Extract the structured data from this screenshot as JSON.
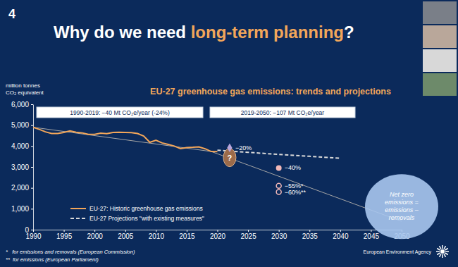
{
  "slide": {
    "number": "4",
    "title_parts": [
      "Why do we need ",
      "long-term planning",
      "?"
    ]
  },
  "chart_data": {
    "type": "line",
    "title": "EU-27 greenhouse gas emissions: trends and projections",
    "ylabel": [
      "million tonnes",
      "CO₂ equivalent"
    ],
    "xlim": [
      1990,
      2050
    ],
    "xticks": [
      1990,
      1995,
      2000,
      2005,
      2010,
      2015,
      2020,
      2025,
      2030,
      2035,
      2040,
      2045,
      2050
    ],
    "ylim": [
      0,
      6000
    ],
    "yticks": [
      0,
      {
        "value": 1000,
        "label": "1,000"
      },
      {
        "value": 2000,
        "label": "2,000"
      },
      {
        "value": 3000,
        "label": "3,000"
      },
      {
        "value": 4000,
        "label": "4,000"
      },
      {
        "value": 5000,
        "label": "5,000"
      },
      {
        "value": 6000,
        "label": "6,000"
      }
    ],
    "grid": false,
    "legend": "lower left",
    "series": [
      {
        "name": "EU-27: Historic greenhouse gas emissions",
        "color": "#f2a65a",
        "line_style": "solid",
        "x": [
          1990,
          1991,
          1992,
          1993,
          1994,
          1995,
          1996,
          1997,
          1998,
          1999,
          2000,
          2001,
          2002,
          2003,
          2004,
          2005,
          2006,
          2007,
          2008,
          2009,
          2010,
          2011,
          2012,
          2013,
          2014,
          2015,
          2016,
          2017,
          2018,
          2019,
          2020
        ],
        "values": [
          4900,
          4800,
          4680,
          4600,
          4600,
          4650,
          4730,
          4660,
          4630,
          4560,
          4560,
          4620,
          4590,
          4650,
          4660,
          4650,
          4640,
          4600,
          4480,
          4180,
          4280,
          4150,
          4080,
          4000,
          3880,
          3930,
          3940,
          3960,
          3870,
          3740,
          3730
        ]
      },
      {
        "name": "EU-27 Projections \"with existing measures\"",
        "color": "#d9d9d9",
        "line_style": "dashed",
        "x": [
          2020,
          2025,
          2030,
          2035,
          2040
        ],
        "values": [
          3800,
          3700,
          3600,
          3510,
          3420
        ]
      },
      {
        "color": "#a6a6a6",
        "line_style": "solid",
        "x": [
          1990,
          2019,
          2050
        ],
        "values": [
          4900,
          3740,
          400
        ]
      }
    ],
    "targets": [
      {
        "label": "−20%",
        "x": 2022,
        "y": 3920,
        "marker": "diamond",
        "color": "#b9a6dc"
      },
      {
        "label": "−40%",
        "x": 2030,
        "y": 2950,
        "marker": "circle",
        "color": "#f2b8b8"
      },
      {
        "label": "−55%*",
        "x": 2030,
        "y": 2100,
        "marker": "open_circle",
        "color": "#f2b8b8"
      },
      {
        "label": "−60%**",
        "x": 2030,
        "y": 1800,
        "marker": "open_circle",
        "color": "#f2b8b8"
      }
    ],
    "period_labels": [
      "1990-2019: −40 Mt CO₂e/year (-24%)",
      "2019-2050: −107 Mt CO₂e/year"
    ],
    "annotations": [
      {
        "text": "?",
        "x": 2022,
        "y": 3450
      },
      {
        "text": [
          "Net zero",
          "emissions =",
          "emissions –",
          "removals"
        ],
        "x": 2050,
        "y": 1100
      }
    ]
  },
  "footnotes": [
    "*   for emissions and removals (European Commission)",
    "**  for emissions (European Parliament)"
  ],
  "source": "European Environment Agency"
}
